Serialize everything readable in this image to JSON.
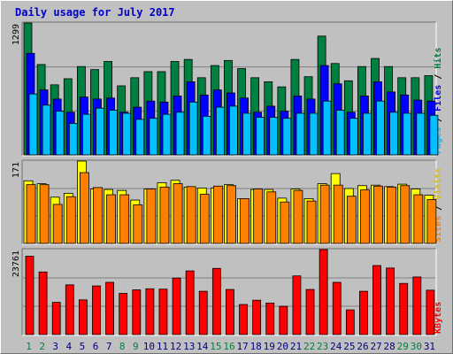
{
  "chart_data": {
    "type": "bar",
    "title": "Daily usage for July 2017",
    "categories": [
      "1",
      "2",
      "3",
      "4",
      "5",
      "6",
      "7",
      "8",
      "9",
      "10",
      "11",
      "12",
      "13",
      "14",
      "15",
      "16",
      "17",
      "18",
      "19",
      "20",
      "21",
      "22",
      "23",
      "24",
      "25",
      "26",
      "27",
      "28",
      "29",
      "30",
      "31"
    ],
    "weekend_days": [
      "1",
      "2",
      "8",
      "9",
      "15",
      "16",
      "22",
      "23",
      "29",
      "30"
    ],
    "panels": [
      {
        "ylabel": "Pages / Files / Hits",
        "max_label": "1299",
        "ylim": [
          0,
          1299
        ],
        "series": [
          {
            "name": "Hits",
            "color": "#008040",
            "values": [
              1299,
              890,
              690,
              750,
              870,
              840,
              920,
              680,
              760,
              820,
              820,
              920,
              940,
              760,
              880,
              930,
              850,
              760,
              720,
              670,
              940,
              770,
              1170,
              900,
              730,
              870,
              950,
              870,
              760,
              760,
              780
            ]
          },
          {
            "name": "Files",
            "color": "#0000ff",
            "values": [
              1000,
              640,
              550,
              420,
              570,
              550,
              560,
              420,
              470,
              530,
              520,
              580,
              720,
              590,
              640,
              610,
              560,
              420,
              480,
              430,
              580,
              550,
              880,
              700,
              420,
              580,
              720,
              620,
              590,
              540,
              530
            ]
          },
          {
            "name": "Pages",
            "color": "#00c0ff",
            "values": [
              600,
              490,
              430,
              310,
              400,
              460,
              440,
              410,
              350,
              360,
              400,
              420,
              520,
              380,
              470,
              480,
              410,
              370,
              370,
              360,
              410,
              410,
              530,
              440,
              360,
              410,
              530,
              420,
              410,
              410,
              390
            ]
          }
        ]
      },
      {
        "ylabel": "Sites / Visits",
        "max_label": "171",
        "ylim": [
          0,
          171
        ],
        "series": [
          {
            "name": "Visits",
            "color": "#ffff00",
            "values": [
              130,
              124,
              96,
              104,
              171,
              113,
              112,
              110,
              90,
              113,
              126,
              131,
              117,
              115,
              115,
              122,
              93,
              112,
              112,
              94,
              113,
              93,
              124,
              145,
              114,
              120,
              121,
              118,
              123,
              113,
              100
            ]
          },
          {
            "name": "Sites",
            "color": "#ff8000",
            "values": [
              122,
              122,
              81,
              97,
              147,
              116,
              101,
              101,
              80,
              113,
              117,
              124,
              118,
              102,
              119,
              120,
              93,
              113,
              107,
              86,
              110,
              88,
              121,
              121,
              98,
              111,
              119,
              117,
              120,
              101,
              91
            ]
          }
        ]
      },
      {
        "ylabel": "KBytes",
        "max_label": "23761",
        "ylim": [
          0,
          23761
        ],
        "series": [
          {
            "name": "KBytes",
            "color": "#ff0000",
            "values": [
              21900,
              17500,
              9000,
              13900,
              9700,
              13600,
              14600,
              11500,
              12500,
              12800,
              12700,
              15800,
              17800,
              12100,
              18500,
              12600,
              8400,
              9600,
              8800,
              7900,
              16400,
              12600,
              23761,
              14600,
              6900,
              12100,
              19300,
              18600,
              14300,
              16100,
              12400
            ]
          }
        ]
      }
    ],
    "colors": {
      "background": "#c0c0c0",
      "title": "#0000cc",
      "weekday_label": "#000080",
      "weekend_label": "#008040",
      "bar_outline": "#000000"
    }
  }
}
